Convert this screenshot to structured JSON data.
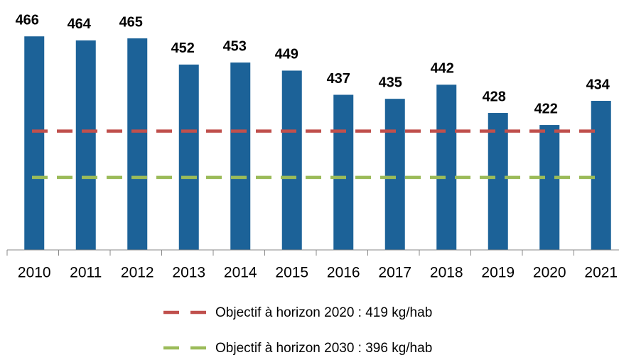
{
  "chart_data": {
    "type": "bar",
    "categories": [
      "2010",
      "2011",
      "2012",
      "2013",
      "2014",
      "2015",
      "2016",
      "2017",
      "2018",
      "2019",
      "2020",
      "2021"
    ],
    "values": [
      466,
      464,
      465,
      452,
      453,
      449,
      437,
      435,
      442,
      428,
      422,
      434
    ],
    "color": "#1c6298",
    "ylim": [
      360,
      477
    ],
    "reference_lines": [
      {
        "label": "Objectif à horizon 2020 : 419 kg/hab",
        "value": 419,
        "color": "#c0504d"
      },
      {
        "label": "Objectif à horizon 2030 : 396 kg/hab",
        "value": 396,
        "color": "#9bbb59"
      }
    ]
  }
}
